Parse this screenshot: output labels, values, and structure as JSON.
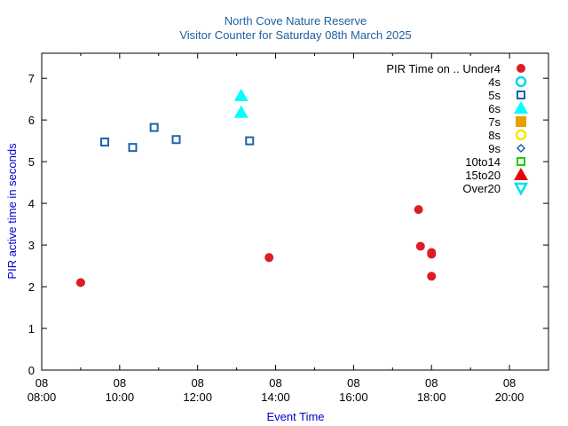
{
  "chart_data": {
    "type": "scatter",
    "title": "North Cove Nature Reserve",
    "subtitle": "Visitor Counter for Saturday 08th March 2025",
    "xlabel": "Event Time",
    "ylabel": "PIR active time in seconds",
    "xlim": [
      "08:00",
      "21:00"
    ],
    "ylim": [
      0,
      7.6
    ],
    "x_ticks": [
      {
        "time": "08:00",
        "label_top": "08",
        "label_bottom": "08:00"
      },
      {
        "time": "10:00",
        "label_top": "08",
        "label_bottom": "10:00"
      },
      {
        "time": "12:00",
        "label_top": "08",
        "label_bottom": "12:00"
      },
      {
        "time": "14:00",
        "label_top": "08",
        "label_bottom": "14:00"
      },
      {
        "time": "16:00",
        "label_top": "08",
        "label_bottom": "16:00"
      },
      {
        "time": "18:00",
        "label_top": "08",
        "label_bottom": "18:00"
      },
      {
        "time": "20:00",
        "label_top": "08",
        "label_bottom": "20:00"
      }
    ],
    "x_minor_ticks": [
      "09:00",
      "11:00",
      "13:00",
      "15:00",
      "17:00",
      "19:00"
    ],
    "y_ticks": [
      "0",
      "1",
      "2",
      "3",
      "4",
      "5",
      "6",
      "7"
    ],
    "legend_header": "PIR Time on ..",
    "legend_position": "top-right",
    "grid": false,
    "series": [
      {
        "name": "Under4",
        "marker": "circle-filled",
        "color": "#dd1c24",
        "points": [
          {
            "x": "09:00",
            "y": 2.1
          },
          {
            "x": "13:50",
            "y": 2.7
          },
          {
            "x": "17:40",
            "y": 3.85
          },
          {
            "x": "17:43",
            "y": 2.97
          },
          {
            "x": "18:00",
            "y": 2.82
          },
          {
            "x": "18:00",
            "y": 2.78
          },
          {
            "x": "18:00",
            "y": 2.25
          }
        ]
      },
      {
        "name": "4s",
        "marker": "circle-open",
        "color": "#00d8e8",
        "points": []
      },
      {
        "name": "5s",
        "marker": "square-open",
        "color": "#1a64a8",
        "points": [
          {
            "x": "09:37",
            "y": 5.47
          },
          {
            "x": "10:20",
            "y": 5.34
          },
          {
            "x": "10:53",
            "y": 5.82
          },
          {
            "x": "11:27",
            "y": 5.53
          },
          {
            "x": "13:20",
            "y": 5.5
          }
        ]
      },
      {
        "name": "6s",
        "marker": "triangle-filled",
        "color": "#00ffff",
        "points": [
          {
            "x": "13:07",
            "y": 6.58
          },
          {
            "x": "13:07",
            "y": 6.18
          }
        ]
      },
      {
        "name": "7s",
        "marker": "square-filled",
        "color": "#e8a000",
        "points": []
      },
      {
        "name": "8s",
        "marker": "circle-open",
        "color": "#f0e800",
        "points": []
      },
      {
        "name": "9s",
        "marker": "diamond-open",
        "color": "#1a64a8",
        "points": []
      },
      {
        "name": "10to14",
        "marker": "square-open",
        "color": "#22cc00",
        "points": []
      },
      {
        "name": "15to20",
        "marker": "triangle-filled",
        "color": "#e8000a",
        "points": []
      },
      {
        "name": "Over20",
        "marker": "triangle-down-open",
        "color": "#00e0f0",
        "points": []
      }
    ]
  }
}
